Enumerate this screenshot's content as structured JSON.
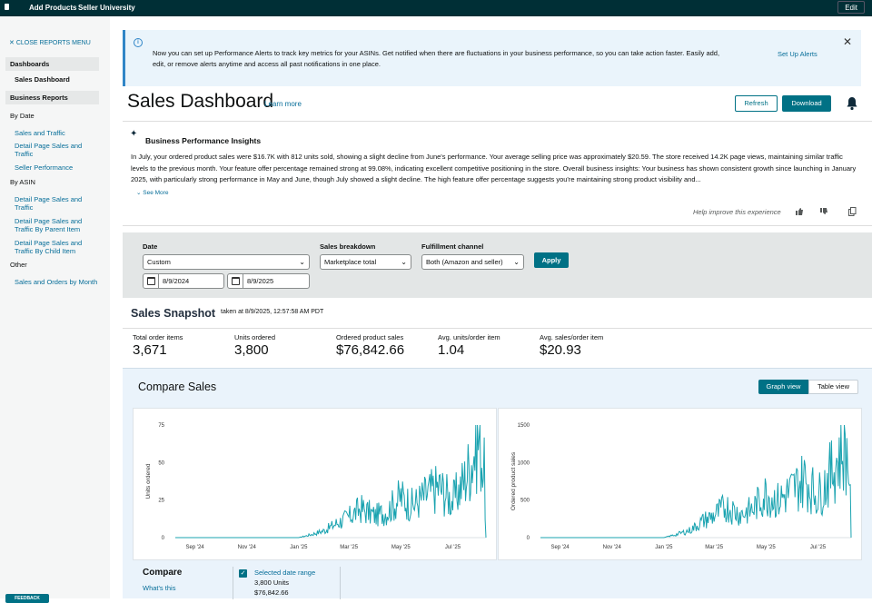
{
  "topbar": {
    "nav": [
      "Add Products",
      "Seller University"
    ],
    "edit": "Edit"
  },
  "sidebar": {
    "close": "CLOSE REPORTS MENU",
    "dashboards": "Dashboards",
    "sales_dashboard": "Sales Dashboard",
    "business_reports": "Business Reports",
    "by_date": "By Date",
    "by_date_links": [
      "Sales and Traffic",
      "Detail Page Sales and Traffic",
      "Seller Performance"
    ],
    "by_asin": "By ASIN",
    "by_asin_links": [
      "Detail Page Sales and Traffic",
      "Detail Page Sales and Traffic By Parent Item",
      "Detail Page Sales and Traffic By Child Item"
    ],
    "other": "Other",
    "other_links": [
      "Sales and Orders by Month"
    ],
    "feedback": "FEEDBACK"
  },
  "alert": {
    "text": "Now you can set up Performance Alerts to track key metrics for your ASINs. Get notified when there are fluctuations in your business performance, so you can take action faster. Easily add, edit, or remove alerts anytime and access all past notifications in one place.",
    "link": "Set Up Alerts"
  },
  "header": {
    "title": "Sales Dashboard",
    "learn_more": "Learn more",
    "refresh": "Refresh",
    "download": "Download"
  },
  "insights": {
    "title": "Business Performance Insights",
    "body": "In July, your ordered product sales were $16.7K with 812 units sold, showing a slight decline from June's performance. Your average selling price was approximately $20.59. The store received 14.2K page views, maintaining similar traffic levels to the previous month. Your feature offer percentage remained strong at 99.08%, indicating excellent competitive positioning in the store. Overall business insights: Your business has shown consistent growth since launching in January 2025, with particularly strong performance in May and June, though July showed a slight decline. The high feature offer percentage suggests you're maintaining strong product visibility and...",
    "see_more": "See More",
    "help": "Help improve this experience"
  },
  "filters": {
    "date_label": "Date",
    "date_value": "Custom",
    "start": "8/9/2024",
    "end": "8/9/2025",
    "breakdown_label": "Sales breakdown",
    "breakdown_value": "Marketplace total",
    "channel_label": "Fulfillment channel",
    "channel_value": "Both (Amazon and seller)",
    "apply": "Apply"
  },
  "snapshot": {
    "title": "Sales Snapshot",
    "taken": "taken at 8/9/2025, 12:57:58 AM PDT",
    "metrics": [
      {
        "label": "Total order items",
        "value": "3,671"
      },
      {
        "label": "Units ordered",
        "value": "3,800"
      },
      {
        "label": "Ordered product sales",
        "value": "$76,842.66"
      },
      {
        "label": "Avg. units/order item",
        "value": "1.04"
      },
      {
        "label": "Avg. sales/order item",
        "value": "$20.93"
      }
    ]
  },
  "compare": {
    "title": "Compare Sales",
    "graph_view": "Graph view",
    "table_view": "Table view",
    "label": "Compare",
    "whats_this": "What's this",
    "selected_range": "Selected date range",
    "sel_units": "3,800 Units",
    "sel_sales": "$76,842.66"
  },
  "chart_data": [
    {
      "type": "line",
      "ylabel": "Units ordered",
      "ylim": [
        0,
        75
      ],
      "yticks": [
        0,
        25,
        50,
        75
      ],
      "x_ticks": [
        "Sep '24",
        "Nov '24",
        "Jan '25",
        "Mar '25",
        "May '25",
        "Jul '25"
      ],
      "x": [
        "2024-08-09",
        "2025-01-01",
        "2025-01-15",
        "2025-02-01",
        "2025-02-15",
        "2025-03-01",
        "2025-03-15",
        "2025-04-01",
        "2025-04-15",
        "2025-05-01",
        "2025-05-15",
        "2025-06-01",
        "2025-06-15",
        "2025-07-01",
        "2025-07-15",
        "2025-08-01",
        "2025-08-07",
        "2025-08-09"
      ],
      "values": [
        0,
        0,
        2,
        5,
        10,
        14,
        20,
        15,
        18,
        28,
        22,
        30,
        35,
        25,
        40,
        68,
        45,
        0
      ]
    },
    {
      "type": "line",
      "ylabel": "Ordered product sales",
      "ylim": [
        0,
        1500
      ],
      "yticks": [
        0,
        500,
        1000,
        1500
      ],
      "x_ticks": [
        "Sep '24",
        "Nov '24",
        "Jan '25",
        "Mar '25",
        "May '25",
        "Jul '25"
      ],
      "x": [
        "2024-08-09",
        "2025-01-01",
        "2025-01-15",
        "2025-02-01",
        "2025-02-15",
        "2025-03-01",
        "2025-03-15",
        "2025-04-01",
        "2025-04-15",
        "2025-05-01",
        "2025-05-15",
        "2025-06-01",
        "2025-06-15",
        "2025-07-01",
        "2025-07-15",
        "2025-08-01",
        "2025-08-07",
        "2025-08-09"
      ],
      "values": [
        0,
        0,
        40,
        100,
        220,
        300,
        420,
        320,
        380,
        600,
        500,
        650,
        800,
        560,
        850,
        1250,
        950,
        0
      ]
    }
  ],
  "colors": {
    "accent": "#007185",
    "line": "#1aa3b0",
    "topbar": "#002f36"
  }
}
